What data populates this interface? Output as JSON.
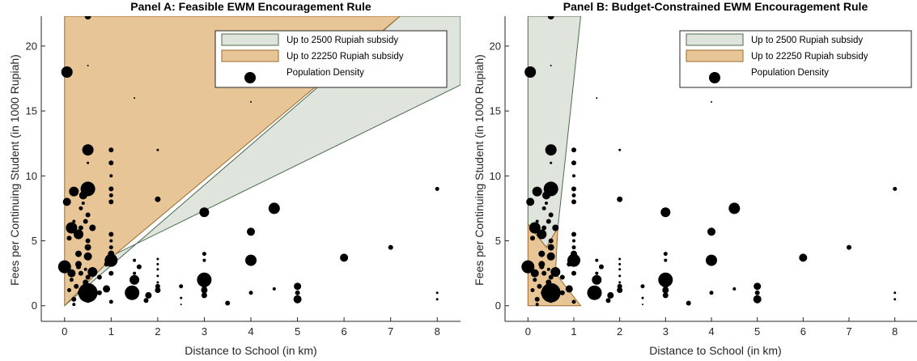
{
  "colors": {
    "green_fill": "#dfe5dc",
    "green_edge": "#4d6b4d",
    "orange_fill": "#e8c596",
    "orange_edge": "#9a6a2a",
    "points": "#000000",
    "axis": "#262626"
  },
  "chart_data": [
    {
      "type": "scatter",
      "title": "Panel A: Feasible EWM Encouragement Rule",
      "xlabel": "Distance to School (in km)",
      "ylabel": "Fees per Continuing Student (in 1000 Rupiah)",
      "xlim": [
        -0.5,
        8.5
      ],
      "ylim": [
        -1.2,
        22.3
      ],
      "xticks": [
        "0",
        "1",
        "2",
        "3",
        "4",
        "5",
        "6",
        "7",
        "8"
      ],
      "yticks": [
        "0",
        "5",
        "10",
        "15",
        "20"
      ],
      "grid": false,
      "legend_position": "top-right",
      "legend": [
        "Up to 2500 Rupiah subsidy",
        "Up to 22250 Rupiah subsidy",
        "Population Density"
      ],
      "regions": [
        {
          "name": "Up to 2500 Rupiah subsidy",
          "polygon": [
            [
              0,
              0
            ],
            [
              7.2,
              22.3
            ],
            [
              8.5,
              22.3
            ],
            [
              8.5,
              17
            ],
            [
              1.1,
              4.0
            ]
          ]
        },
        {
          "name": "Up to 22250 Rupiah subsidy",
          "polygon": [
            [
              0,
              0
            ],
            [
              0,
              22.3
            ],
            [
              7.2,
              22.3
            ],
            [
              1.1,
              4.0
            ]
          ]
        }
      ]
    },
    {
      "type": "scatter",
      "title": "Panel B: Budget-Constrained EWM Encouragement Rule",
      "xlabel": "Distance to School (in km)",
      "ylabel": "Fees per Continuing Student (in 1000 Rupiah)",
      "xlim": [
        -0.5,
        8.5
      ],
      "ylim": [
        -1.2,
        22.3
      ],
      "xticks": [
        "0",
        "1",
        "2",
        "3",
        "4",
        "5",
        "6",
        "7",
        "8"
      ],
      "yticks": [
        "0",
        "5",
        "10",
        "15",
        "20"
      ],
      "grid": false,
      "legend_position": "top-right",
      "legend": [
        "Up to 2500 Rupiah subsidy",
        "Up to 22250 Rupiah subsidy",
        "Population Density"
      ],
      "regions": [
        {
          "name": "Up to 2500 Rupiah subsidy",
          "polygon": [
            [
              0,
              6.3
            ],
            [
              0,
              22.3
            ],
            [
              1.15,
              22.3
            ],
            [
              0.65,
              6.0
            ],
            [
              0.4,
              4.5
            ]
          ]
        },
        {
          "name": "Up to 22250 Rupiah subsidy",
          "polygon": [
            [
              0,
              0
            ],
            [
              0,
              6.3
            ],
            [
              0.4,
              4.5
            ],
            [
              0.65,
              6.0
            ],
            [
              0.6,
              2.5
            ],
            [
              1.15,
              0
            ]
          ]
        }
      ]
    }
  ],
  "points": [
    {
      "x": 0.5,
      "y": 22.3,
      "s": 4
    },
    {
      "x": 0.5,
      "y": 18.5,
      "s": 1
    },
    {
      "x": 0.05,
      "y": 18,
      "s": 7
    },
    {
      "x": 1.5,
      "y": 16,
      "s": 1
    },
    {
      "x": 4,
      "y": 15.7,
      "s": 1
    },
    {
      "x": 0.5,
      "y": 12,
      "s": 7
    },
    {
      "x": 1,
      "y": 12,
      "s": 3
    },
    {
      "x": 2,
      "y": 12,
      "s": 1.5
    },
    {
      "x": 1,
      "y": 11,
      "s": 3
    },
    {
      "x": 0.5,
      "y": 11,
      "s": 1.5
    },
    {
      "x": 1,
      "y": 10,
      "s": 2
    },
    {
      "x": 0.5,
      "y": 9,
      "s": 9
    },
    {
      "x": 1,
      "y": 9,
      "s": 3
    },
    {
      "x": 1,
      "y": 8.5,
      "s": 2.5
    },
    {
      "x": 8,
      "y": 9,
      "s": 2.5
    },
    {
      "x": 0.2,
      "y": 8.8,
      "s": 6
    },
    {
      "x": 0.4,
      "y": 8.5,
      "s": 5
    },
    {
      "x": 0.05,
      "y": 8,
      "s": 5
    },
    {
      "x": 0.4,
      "y": 7.9,
      "s": 2
    },
    {
      "x": 0.35,
      "y": 7.5,
      "s": 2.5
    },
    {
      "x": 1,
      "y": 8,
      "s": 3
    },
    {
      "x": 2,
      "y": 8.2,
      "s": 3.5
    },
    {
      "x": 3,
      "y": 7.2,
      "s": 6
    },
    {
      "x": 4.5,
      "y": 7.5,
      "s": 7
    },
    {
      "x": 0.5,
      "y": 7,
      "s": 3
    },
    {
      "x": 0.2,
      "y": 6.5,
      "s": 2
    },
    {
      "x": 0.45,
      "y": 6.5,
      "s": 3
    },
    {
      "x": 0.15,
      "y": 6,
      "s": 7
    },
    {
      "x": 0.35,
      "y": 6,
      "s": 3
    },
    {
      "x": 0.3,
      "y": 5.5,
      "s": 6
    },
    {
      "x": 0.6,
      "y": 6,
      "s": 4
    },
    {
      "x": 0.1,
      "y": 5.2,
      "s": 3
    },
    {
      "x": 0.5,
      "y": 5,
      "s": 3
    },
    {
      "x": 1,
      "y": 5.5,
      "s": 3
    },
    {
      "x": 1,
      "y": 5,
      "s": 2
    },
    {
      "x": 0.5,
      "y": 4.5,
      "s": 4
    },
    {
      "x": 1,
      "y": 4.5,
      "s": 2.5
    },
    {
      "x": 4,
      "y": 5.7,
      "s": 5
    },
    {
      "x": 1,
      "y": 4,
      "s": 4
    },
    {
      "x": 0.3,
      "y": 4,
      "s": 4
    },
    {
      "x": 0.5,
      "y": 3.8,
      "s": 5
    },
    {
      "x": 1,
      "y": 3.5,
      "s": 8
    },
    {
      "x": 0.9,
      "y": 3.2,
      "s": 3
    },
    {
      "x": 1.5,
      "y": 3.5,
      "s": 2
    },
    {
      "x": 1.6,
      "y": 3,
      "s": 3
    },
    {
      "x": 3,
      "y": 4,
      "s": 2.5
    },
    {
      "x": 3,
      "y": 3.5,
      "s": 2
    },
    {
      "x": 4,
      "y": 3.5,
      "s": 7
    },
    {
      "x": 2,
      "y": 3.6,
      "s": 1.5
    },
    {
      "x": 2,
      "y": 3.2,
      "s": 1.5
    },
    {
      "x": 2,
      "y": 2.8,
      "s": 1.5
    },
    {
      "x": 6,
      "y": 3.7,
      "s": 5
    },
    {
      "x": 7,
      "y": 4.5,
      "s": 3
    },
    {
      "x": 0.3,
      "y": 3.2,
      "s": 4
    },
    {
      "x": 0,
      "y": 3,
      "s": 8
    },
    {
      "x": 0.3,
      "y": 3,
      "s": 3
    },
    {
      "x": 0.15,
      "y": 2.5,
      "s": 5
    },
    {
      "x": 0.45,
      "y": 2.8,
      "s": 2
    },
    {
      "x": 0.6,
      "y": 2.6,
      "s": 6
    },
    {
      "x": 0.35,
      "y": 2.5,
      "s": 3
    },
    {
      "x": 0.5,
      "y": 2.2,
      "s": 3
    },
    {
      "x": 0.75,
      "y": 2.2,
      "s": 3
    },
    {
      "x": 1,
      "y": 2.5,
      "s": 3
    },
    {
      "x": 1.5,
      "y": 2,
      "s": 6
    },
    {
      "x": 1.5,
      "y": 2.5,
      "s": 2
    },
    {
      "x": 2,
      "y": 2.3,
      "s": 1.5
    },
    {
      "x": 2,
      "y": 1.8,
      "s": 1.5
    },
    {
      "x": 2.5,
      "y": 1.5,
      "s": 2.5
    },
    {
      "x": 3,
      "y": 2,
      "s": 9
    },
    {
      "x": 3,
      "y": 1.5,
      "s": 3
    },
    {
      "x": 3,
      "y": 1.2,
      "s": 4
    },
    {
      "x": 4,
      "y": 1,
      "s": 2.5
    },
    {
      "x": 4.5,
      "y": 1.3,
      "s": 2
    },
    {
      "x": 5,
      "y": 1.5,
      "s": 4.5
    },
    {
      "x": 5,
      "y": 1,
      "s": 3
    },
    {
      "x": 0.15,
      "y": 2,
      "s": 2.5
    },
    {
      "x": 0.25,
      "y": 1.5,
      "s": 3
    },
    {
      "x": 0.45,
      "y": 1.8,
      "s": 3.5
    },
    {
      "x": 0.1,
      "y": 1.2,
      "s": 2.5
    },
    {
      "x": 0.35,
      "y": 1,
      "s": 4
    },
    {
      "x": 0.5,
      "y": 1,
      "s": 12
    },
    {
      "x": 0.9,
      "y": 1.3,
      "s": 4.5
    },
    {
      "x": 0.75,
      "y": 1,
      "s": 3
    },
    {
      "x": 1.45,
      "y": 1,
      "s": 9
    },
    {
      "x": 2,
      "y": 1.2,
      "s": 3.5
    },
    {
      "x": 2,
      "y": 1.5,
      "s": 3
    },
    {
      "x": 1.8,
      "y": 0.8,
      "s": 4
    },
    {
      "x": 3,
      "y": 0.8,
      "s": 3.5
    },
    {
      "x": 2.5,
      "y": 0.6,
      "s": 1.5
    },
    {
      "x": 0.2,
      "y": 0.5,
      "s": 3
    },
    {
      "x": 0.5,
      "y": 0.4,
      "s": 3
    },
    {
      "x": 1,
      "y": 0.3,
      "s": 2.5
    },
    {
      "x": 1.75,
      "y": 0.4,
      "s": 3
    },
    {
      "x": 3.5,
      "y": 0.2,
      "s": 3
    },
    {
      "x": 5,
      "y": 0.5,
      "s": 5
    },
    {
      "x": 8,
      "y": 1,
      "s": 1.5
    },
    {
      "x": 8,
      "y": 0.5,
      "s": 1.5
    },
    {
      "x": 0.2,
      "y": 0.1,
      "s": 2
    },
    {
      "x": 2.5,
      "y": 0.1,
      "s": 1
    }
  ]
}
